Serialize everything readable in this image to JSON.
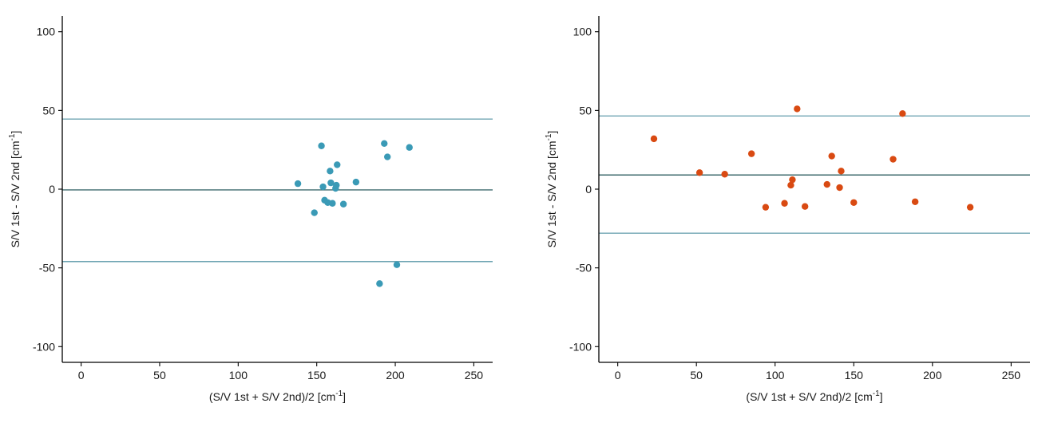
{
  "chart_data": [
    {
      "type": "scatter",
      "title": "",
      "xlabel": "(S/V 1st + S/V 2nd)/2 [cm",
      "xlabel_sup": "-1",
      "xlabel_end": "]",
      "ylabel": "S/V 1st - S/V 2nd [cm",
      "ylabel_sup": "-1",
      "ylabel_end": "]",
      "xlim": [
        -12,
        262
      ],
      "ylim": [
        -110,
        110
      ],
      "xticks": [
        0,
        50,
        100,
        150,
        200,
        250
      ],
      "yticks": [
        -100,
        -50,
        0,
        50,
        100
      ],
      "grid": false,
      "point_color": "#3a9ab6",
      "hlines": [
        {
          "y": 44.5,
          "color": "#6fa5b3"
        },
        {
          "y": -0.5,
          "color": "#3f6b6e"
        },
        {
          "y": -46,
          "color": "#6fa5b3"
        }
      ],
      "points": [
        {
          "x": 138,
          "y": 3.5
        },
        {
          "x": 153,
          "y": 27.5
        },
        {
          "x": 154,
          "y": 1.5
        },
        {
          "x": 155,
          "y": -7
        },
        {
          "x": 157,
          "y": -8.5
        },
        {
          "x": 158.5,
          "y": 11.5
        },
        {
          "x": 159,
          "y": 4
        },
        {
          "x": 160,
          "y": -9
        },
        {
          "x": 162,
          "y": 0.5
        },
        {
          "x": 162.5,
          "y": 2.5
        },
        {
          "x": 163,
          "y": 15.5
        },
        {
          "x": 167,
          "y": -9.5
        },
        {
          "x": 175,
          "y": 4.5
        },
        {
          "x": 148.5,
          "y": -15
        },
        {
          "x": 193,
          "y": 29
        },
        {
          "x": 195,
          "y": 20.5
        },
        {
          "x": 201,
          "y": -48
        },
        {
          "x": 190,
          "y": -60
        },
        {
          "x": 209,
          "y": 26.5
        }
      ]
    },
    {
      "type": "scatter",
      "title": "",
      "xlabel": "(S/V 1st + S/V 2nd)/2 [cm",
      "xlabel_sup": "-1",
      "xlabel_end": "]",
      "ylabel": "S/V 1st - S/V 2nd [cm",
      "ylabel_sup": "-1",
      "ylabel_end": "]",
      "xlim": [
        -12,
        262
      ],
      "ylim": [
        -110,
        110
      ],
      "xticks": [
        0,
        50,
        100,
        150,
        200,
        250
      ],
      "yticks": [
        -100,
        -50,
        0,
        50,
        100
      ],
      "grid": false,
      "point_color": "#d94a12",
      "hlines": [
        {
          "y": 46.5,
          "color": "#6fa5b3"
        },
        {
          "y": 9,
          "color": "#3f6b6e"
        },
        {
          "y": -28,
          "color": "#6fa5b3"
        }
      ],
      "points": [
        {
          "x": 23,
          "y": 32
        },
        {
          "x": 52,
          "y": 10.5
        },
        {
          "x": 68,
          "y": 9.5
        },
        {
          "x": 85,
          "y": 22.5
        },
        {
          "x": 94,
          "y": -11.5
        },
        {
          "x": 106,
          "y": -9
        },
        {
          "x": 110,
          "y": 2.5
        },
        {
          "x": 111,
          "y": 6
        },
        {
          "x": 114,
          "y": 51
        },
        {
          "x": 119,
          "y": -11
        },
        {
          "x": 133,
          "y": 3
        },
        {
          "x": 136,
          "y": 21
        },
        {
          "x": 141,
          "y": 1
        },
        {
          "x": 142,
          "y": 11.5
        },
        {
          "x": 150,
          "y": -8.5
        },
        {
          "x": 175,
          "y": 19
        },
        {
          "x": 181,
          "y": 48
        },
        {
          "x": 189,
          "y": -8
        },
        {
          "x": 224,
          "y": -11.5
        }
      ]
    }
  ]
}
